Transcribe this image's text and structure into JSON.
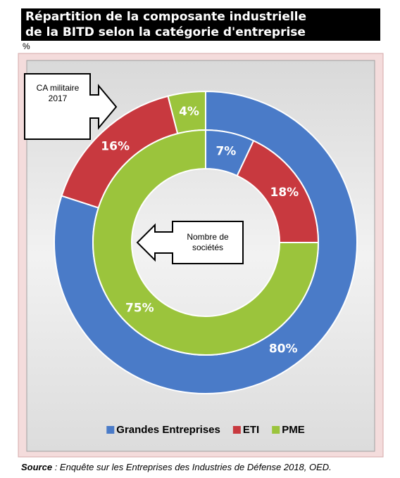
{
  "chart_data": {
    "type": "donut",
    "title": [
      "Répartition de la composante industrielle",
      "de la BITD selon la catégorie d'entreprise"
    ],
    "unit": "%",
    "categories": [
      "Grandes Entreprises",
      "ETI",
      "PME"
    ],
    "colors": [
      "#4a7bc8",
      "#c8393f",
      "#9bc43c"
    ],
    "series": [
      {
        "name": "CA militaire 2017",
        "values": [
          80,
          16,
          4
        ],
        "value_labels": [
          "80%",
          "16%",
          "4%"
        ]
      },
      {
        "name": "Nombre de sociétés",
        "values": [
          7,
          18,
          75
        ],
        "value_labels": [
          "7%",
          "18%",
          "75%"
        ]
      }
    ],
    "legend": "bottom",
    "source_label": "Source",
    "source_text": " : Enquête sur les Entreprises des Industries de Défense 2018, OED."
  }
}
